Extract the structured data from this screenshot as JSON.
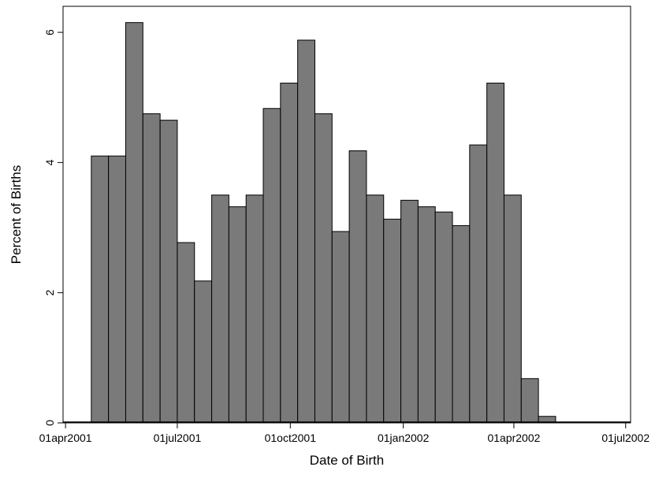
{
  "chart_data": {
    "type": "bar",
    "xlabel": "Date of Birth",
    "ylabel": "Percent of Births",
    "ylim": [
      0,
      6.4
    ],
    "yticks": [
      0,
      2,
      4,
      6
    ],
    "xlim": [
      "2001-03-30",
      "2002-07-05"
    ],
    "xticks": [
      {
        "date": "2001-04-01",
        "label": "01apr2001"
      },
      {
        "date": "2001-07-01",
        "label": "01jul2001"
      },
      {
        "date": "2001-10-01",
        "label": "01oct2001"
      },
      {
        "date": "2002-01-01",
        "label": "01jan2002"
      },
      {
        "date": "2002-04-01",
        "label": "01apr2002"
      },
      {
        "date": "2002-07-01",
        "label": "01jul2002"
      }
    ],
    "bar_color": "#7a7a7a",
    "bars": [
      {
        "start": "2001-04-22",
        "end": "2001-05-06",
        "value": 4.1
      },
      {
        "start": "2001-05-06",
        "end": "2001-05-20",
        "value": 4.1
      },
      {
        "start": "2001-05-20",
        "end": "2001-06-03",
        "value": 6.15
      },
      {
        "start": "2001-06-03",
        "end": "2001-06-17",
        "value": 4.75
      },
      {
        "start": "2001-06-17",
        "end": "2001-07-01",
        "value": 4.65
      },
      {
        "start": "2001-07-01",
        "end": "2001-07-15",
        "value": 2.77
      },
      {
        "start": "2001-07-15",
        "end": "2001-07-29",
        "value": 2.18
      },
      {
        "start": "2001-07-29",
        "end": "2001-08-12",
        "value": 3.5
      },
      {
        "start": "2001-08-12",
        "end": "2001-08-26",
        "value": 3.32
      },
      {
        "start": "2001-08-26",
        "end": "2001-09-09",
        "value": 3.5
      },
      {
        "start": "2001-09-09",
        "end": "2001-09-23",
        "value": 4.83
      },
      {
        "start": "2001-09-23",
        "end": "2001-10-07",
        "value": 5.22
      },
      {
        "start": "2001-10-07",
        "end": "2001-10-21",
        "value": 5.88
      },
      {
        "start": "2001-10-21",
        "end": "2001-11-04",
        "value": 4.75
      },
      {
        "start": "2001-11-04",
        "end": "2001-11-18",
        "value": 2.94
      },
      {
        "start": "2001-11-18",
        "end": "2001-12-02",
        "value": 4.18
      },
      {
        "start": "2001-12-02",
        "end": "2001-12-16",
        "value": 3.5
      },
      {
        "start": "2001-12-16",
        "end": "2001-12-30",
        "value": 3.13
      },
      {
        "start": "2001-12-30",
        "end": "2002-01-13",
        "value": 3.42
      },
      {
        "start": "2002-01-13",
        "end": "2002-01-27",
        "value": 3.32
      },
      {
        "start": "2002-01-27",
        "end": "2002-02-10",
        "value": 3.24
      },
      {
        "start": "2002-02-10",
        "end": "2002-02-24",
        "value": 3.03
      },
      {
        "start": "2002-02-24",
        "end": "2002-03-10",
        "value": 4.27
      },
      {
        "start": "2002-03-10",
        "end": "2002-03-24",
        "value": 5.22
      },
      {
        "start": "2002-03-24",
        "end": "2002-04-07",
        "value": 3.5
      },
      {
        "start": "2002-04-07",
        "end": "2002-04-21",
        "value": 0.68
      },
      {
        "start": "2002-04-21",
        "end": "2002-05-05",
        "value": 0.1
      }
    ],
    "grid": false,
    "legend": "none"
  }
}
